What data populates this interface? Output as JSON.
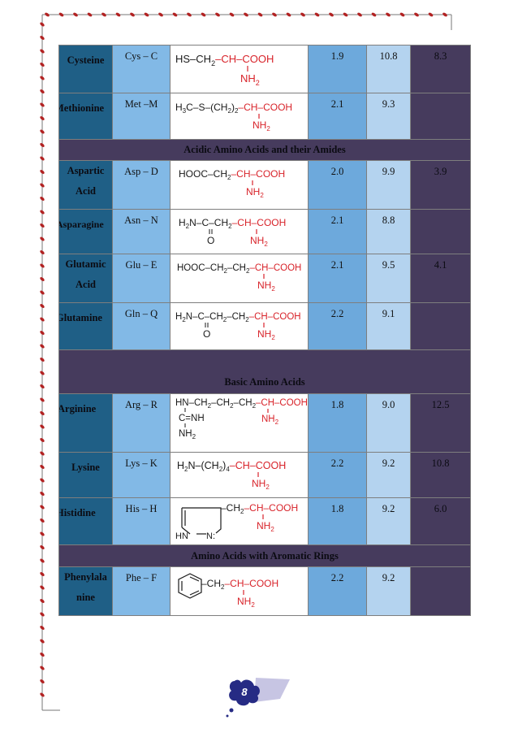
{
  "page_number": "8",
  "sections": {
    "acidic": "Acidic Amino Acids and their Amides",
    "basic": "Basic Amino Acids",
    "aromatic": "Amino Acids with Aromatic Rings"
  },
  "rows": {
    "cysteine": {
      "name": "Cysteine",
      "abbr": "Cys – C",
      "pk1": "1.9",
      "pk2": "10.8",
      "pi": "8.3",
      "formula": [
        "HS–CH",
        "2",
        "–",
        "CH–COOH",
        "NH",
        "2"
      ]
    },
    "methionine": {
      "name": "Methionine",
      "abbr": "Met –M",
      "pk1": "2.1",
      "pk2": "9.3",
      "pi": "",
      "formula": [
        "H",
        "3",
        "C–S–(CH",
        "2",
        ")",
        "2",
        "–",
        "CH–COOH",
        "NH",
        "2"
      ]
    },
    "aspartic": {
      "name_l1": "Aspartic",
      "name_l2": "Acid",
      "abbr": "Asp – D",
      "pk1": "2.0",
      "pk2": "9.9",
      "pi": "3.9",
      "formula": [
        "HOOC–CH",
        "2",
        "–",
        "CH–COOH",
        "NH",
        "2"
      ]
    },
    "asparagine": {
      "name": "Asparagine",
      "abbr": "Asn – N",
      "pk1": "2.1",
      "pk2": "8.8",
      "pi": "",
      "formula": [
        "H",
        "2",
        "N–C–CH",
        "2",
        "–",
        "CH–COOH",
        "O",
        "NH",
        "2"
      ]
    },
    "glutamic": {
      "name_l1": "Glutamic",
      "name_l2": "Acid",
      "abbr": "Glu – E",
      "pk1": "2.1",
      "pk2": "9.5",
      "pi": "4.1",
      "formula": [
        "HOOC–CH",
        "2",
        "–CH",
        "2",
        "–",
        "CH–COOH",
        "NH",
        "2"
      ]
    },
    "glutamine": {
      "name": "Glutamine",
      "abbr": "Gln – Q",
      "pk1": "2.2",
      "pk2": "9.1",
      "pi": "",
      "formula": [
        "H",
        "2",
        "N–C–CH",
        "2",
        "–CH",
        "2",
        "–",
        "CH–COOH",
        "O",
        "NH",
        "2"
      ]
    },
    "arginine": {
      "name": "Arginine",
      "abbr": "Arg – R",
      "pk1": "1.8",
      "pk2": "9.0",
      "pi": "12.5",
      "formula": [
        "HN–CH",
        "2",
        "–CH",
        "2",
        "–CH",
        "2",
        "–",
        "CH–COOH",
        "C=NH",
        "NH",
        "2",
        "NH",
        "2"
      ]
    },
    "lysine": {
      "name": "Lysine",
      "abbr": "Lys – K",
      "pk1": "2.2",
      "pk2": "9.2",
      "pi": "10.8",
      "formula": [
        "H",
        "2",
        "N–(CH",
        "2",
        ")",
        "4",
        "–",
        "CH–COOH",
        "NH",
        "2"
      ]
    },
    "histidine": {
      "name": "Histidine",
      "abbr": "His – H",
      "pk1": "1.8",
      "pk2": "9.2",
      "pi": "6.0",
      "formula": [
        "–CH",
        "2",
        "–",
        "CH–COOH",
        "NH",
        "2",
        "HN",
        "N:"
      ]
    },
    "phenylalanine": {
      "name_l1": "Phenylala",
      "name_l2": "nine",
      "abbr": "Phe – F",
      "pk1": "2.2",
      "pk2": "9.2",
      "pi": "",
      "formula": [
        "–CH",
        "2",
        "–",
        "CH–COOH",
        "NH",
        "2"
      ]
    }
  },
  "colors": {
    "name_col": "#1f5f86",
    "abbr_col": "#82b9e6",
    "pk1_col": "#6da9dc",
    "pk2_col": "#b4d3ef",
    "pi_col": "#463b5d",
    "formula_black": "#1a1a1a",
    "formula_red": "#d8232a",
    "border_vine": "#b22222"
  }
}
